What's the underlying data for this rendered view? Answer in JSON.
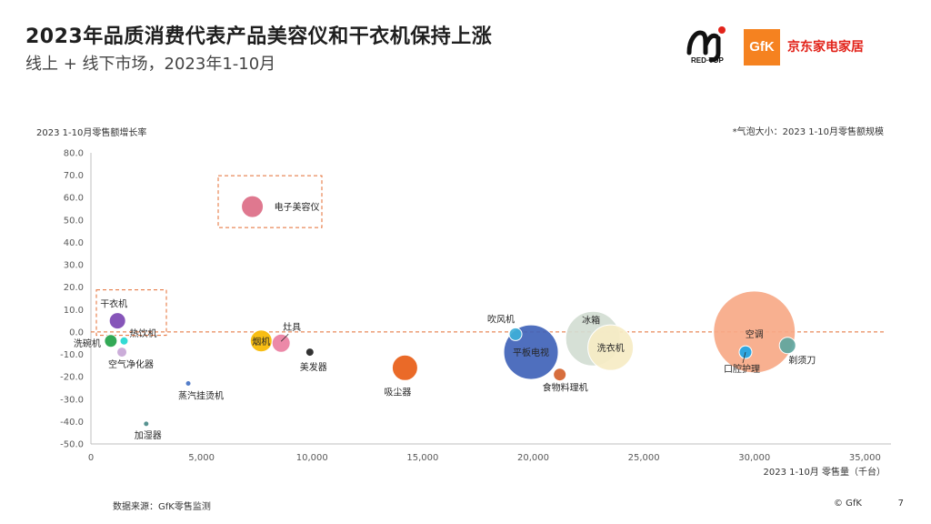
{
  "header": {
    "title": "2023年品质消费代表产品美容仪和干衣机保持上涨",
    "subtitle": "线上 + 线下市场，2023年1-10月"
  },
  "logos": {
    "redtop": "RED·TOP",
    "gfk": "GfK",
    "jd": "京东家电家居"
  },
  "footer": {
    "source": "数据来源：GfK零售监测",
    "copyright": "© GfK",
    "page": "7"
  },
  "chart_data": {
    "type": "scatter",
    "ylabel": "2023 1-10月零售额增长率",
    "xlabel": "2023 1-10月 零售量（千台）",
    "size_note": "*气泡大小：2023 1-10月零售额规模",
    "xlim": [
      0,
      37000
    ],
    "ylim": [
      -50,
      80
    ],
    "xticks": [
      0,
      5000,
      10000,
      15000,
      20000,
      25000,
      30000,
      35000
    ],
    "xtick_labels": [
      "0",
      "5,000",
      "10,000",
      "15,000",
      "20,000",
      "25,000",
      "30,000",
      "35,000"
    ],
    "yticks": [
      80,
      70,
      60,
      50,
      40,
      30,
      20,
      10,
      0,
      -10,
      -20,
      -30,
      -40,
      -50
    ],
    "ytick_labels": [
      "80.0",
      "70.0",
      "60.0",
      "50.0",
      "40.0",
      "30.0",
      "20.0",
      "10.0",
      "0.0",
      "-10.0",
      "-20.0",
      "-30.0",
      "-40.0",
      "-50.0"
    ],
    "reference_line_y": 0,
    "grid": false,
    "points": [
      {
        "label": "空调",
        "x": 30000,
        "y": 0,
        "size": 90,
        "color": "#f7a987"
      },
      {
        "label": "冰箱",
        "x": 22700,
        "y": -3,
        "size": 60,
        "color": "#d3ddd3"
      },
      {
        "label": "洗衣机",
        "x": 23500,
        "y": -7,
        "size": 50,
        "color": "#f6ecc4"
      },
      {
        "label": "平板电视",
        "x": 19900,
        "y": -9,
        "size": 60,
        "color": "#4063b8"
      },
      {
        "label": "吹风机",
        "x": 19200,
        "y": -1,
        "size": 14,
        "color": "#3eaed8"
      },
      {
        "label": "食物料理机",
        "x": 21200,
        "y": -19,
        "size": 14,
        "color": "#d4622c"
      },
      {
        "label": "吸尘器",
        "x": 14200,
        "y": -16,
        "size": 28,
        "color": "#e85d16"
      },
      {
        "label": "电子美容仪",
        "x": 7300,
        "y": 56,
        "size": 24,
        "color": "#dc6d85"
      },
      {
        "label": "干衣机",
        "x": 1200,
        "y": 5,
        "size": 18,
        "color": "#7c46b3"
      },
      {
        "label": "洗碗机",
        "x": 900,
        "y": -4,
        "size": 14,
        "color": "#22a248"
      },
      {
        "label": "热饮机",
        "x": 1500,
        "y": -4,
        "size": 9,
        "color": "#22d8d0"
      },
      {
        "label": "空气净化器",
        "x": 1400,
        "y": -9,
        "size": 11,
        "color": "#c7a6d6"
      },
      {
        "label": "烟机",
        "x": 7700,
        "y": -4,
        "size": 24,
        "color": "#f7b900"
      },
      {
        "label": "灶具",
        "x": 8600,
        "y": -5,
        "size": 20,
        "color": "#ea7fa1"
      },
      {
        "label": "美发器",
        "x": 9900,
        "y": -9,
        "size": 9,
        "color": "#222222"
      },
      {
        "label": "蒸汽挂烫机",
        "x": 4400,
        "y": -23,
        "size": 6,
        "color": "#4472c4"
      },
      {
        "label": "加湿器",
        "x": 2500,
        "y": -41,
        "size": 6,
        "color": "#4a8a88"
      },
      {
        "label": "口腔护理",
        "x": 29600,
        "y": -9,
        "size": 14,
        "color": "#1fa5e6"
      },
      {
        "label": "剃须刀",
        "x": 31500,
        "y": -6,
        "size": 18,
        "color": "#5ea6a0"
      }
    ]
  }
}
